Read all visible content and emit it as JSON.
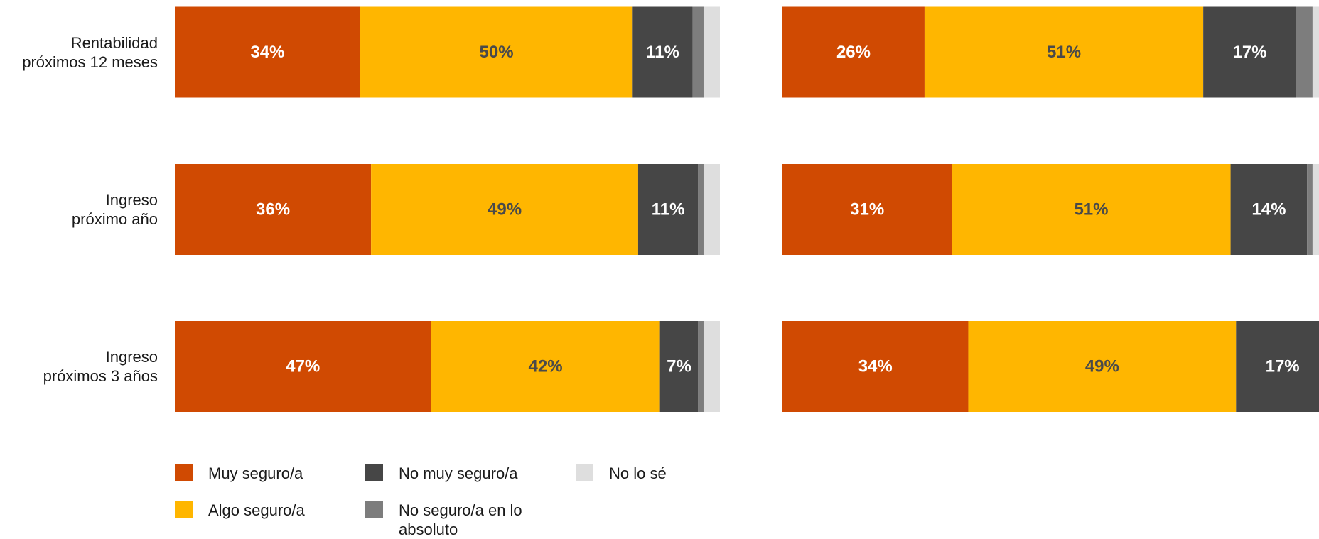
{
  "chart_data": [
    {
      "type": "bar",
      "orientation": "horizontal",
      "stacked": true,
      "categories": [
        "Rentabilidad\npróximos 12 meses",
        "Ingreso\npróximo año",
        "Ingreso\npróximos 3 años"
      ],
      "xlim": [
        0,
        100
      ],
      "series": [
        {
          "name": "Muy seguro/a",
          "color": "#d04a02",
          "label_color": "#ffffff",
          "values": [
            34,
            36,
            47
          ],
          "value_labels": [
            "34%",
            "36%",
            "47%"
          ]
        },
        {
          "name": "Algo seguro/a",
          "color": "#ffb600",
          "label_color": "#4a4a4a",
          "values": [
            50,
            49,
            42
          ],
          "value_labels": [
            "50%",
            "49%",
            "42%"
          ]
        },
        {
          "name": "No muy seguro/a",
          "color": "#464646",
          "label_color": "#ffffff",
          "values": [
            11,
            11,
            7
          ],
          "value_labels": [
            "11%",
            "11%",
            "7%"
          ]
        },
        {
          "name": "No seguro/a en lo absoluto",
          "color": "#7d7d7d",
          "values": [
            2,
            1,
            1
          ]
        },
        {
          "name": "No lo sé",
          "color": "#dedede",
          "values": [
            3,
            3,
            3
          ]
        }
      ]
    },
    {
      "type": "bar",
      "orientation": "horizontal",
      "stacked": true,
      "categories": [
        null,
        null,
        null
      ],
      "xlim": [
        0,
        100
      ],
      "series": [
        {
          "color": "#d04a02",
          "label_color": "#ffffff",
          "values": [
            26,
            31,
            34
          ],
          "value_labels": [
            "26%",
            "31%",
            "34%"
          ]
        },
        {
          "color": "#ffb600",
          "label_color": "#4a4a4a",
          "values": [
            51,
            51,
            49
          ],
          "value_labels": [
            "51%",
            "51%",
            "49%"
          ]
        },
        {
          "color": "#464646",
          "label_color": "#ffffff",
          "values": [
            17,
            14,
            17
          ],
          "value_labels": [
            "17%",
            "14%",
            "17%"
          ]
        },
        {
          "color": "#7d7d7d",
          "values": [
            3,
            1,
            0
          ]
        },
        {
          "color": "#dedede",
          "values": [
            3,
            3,
            0
          ]
        }
      ]
    }
  ]
}
